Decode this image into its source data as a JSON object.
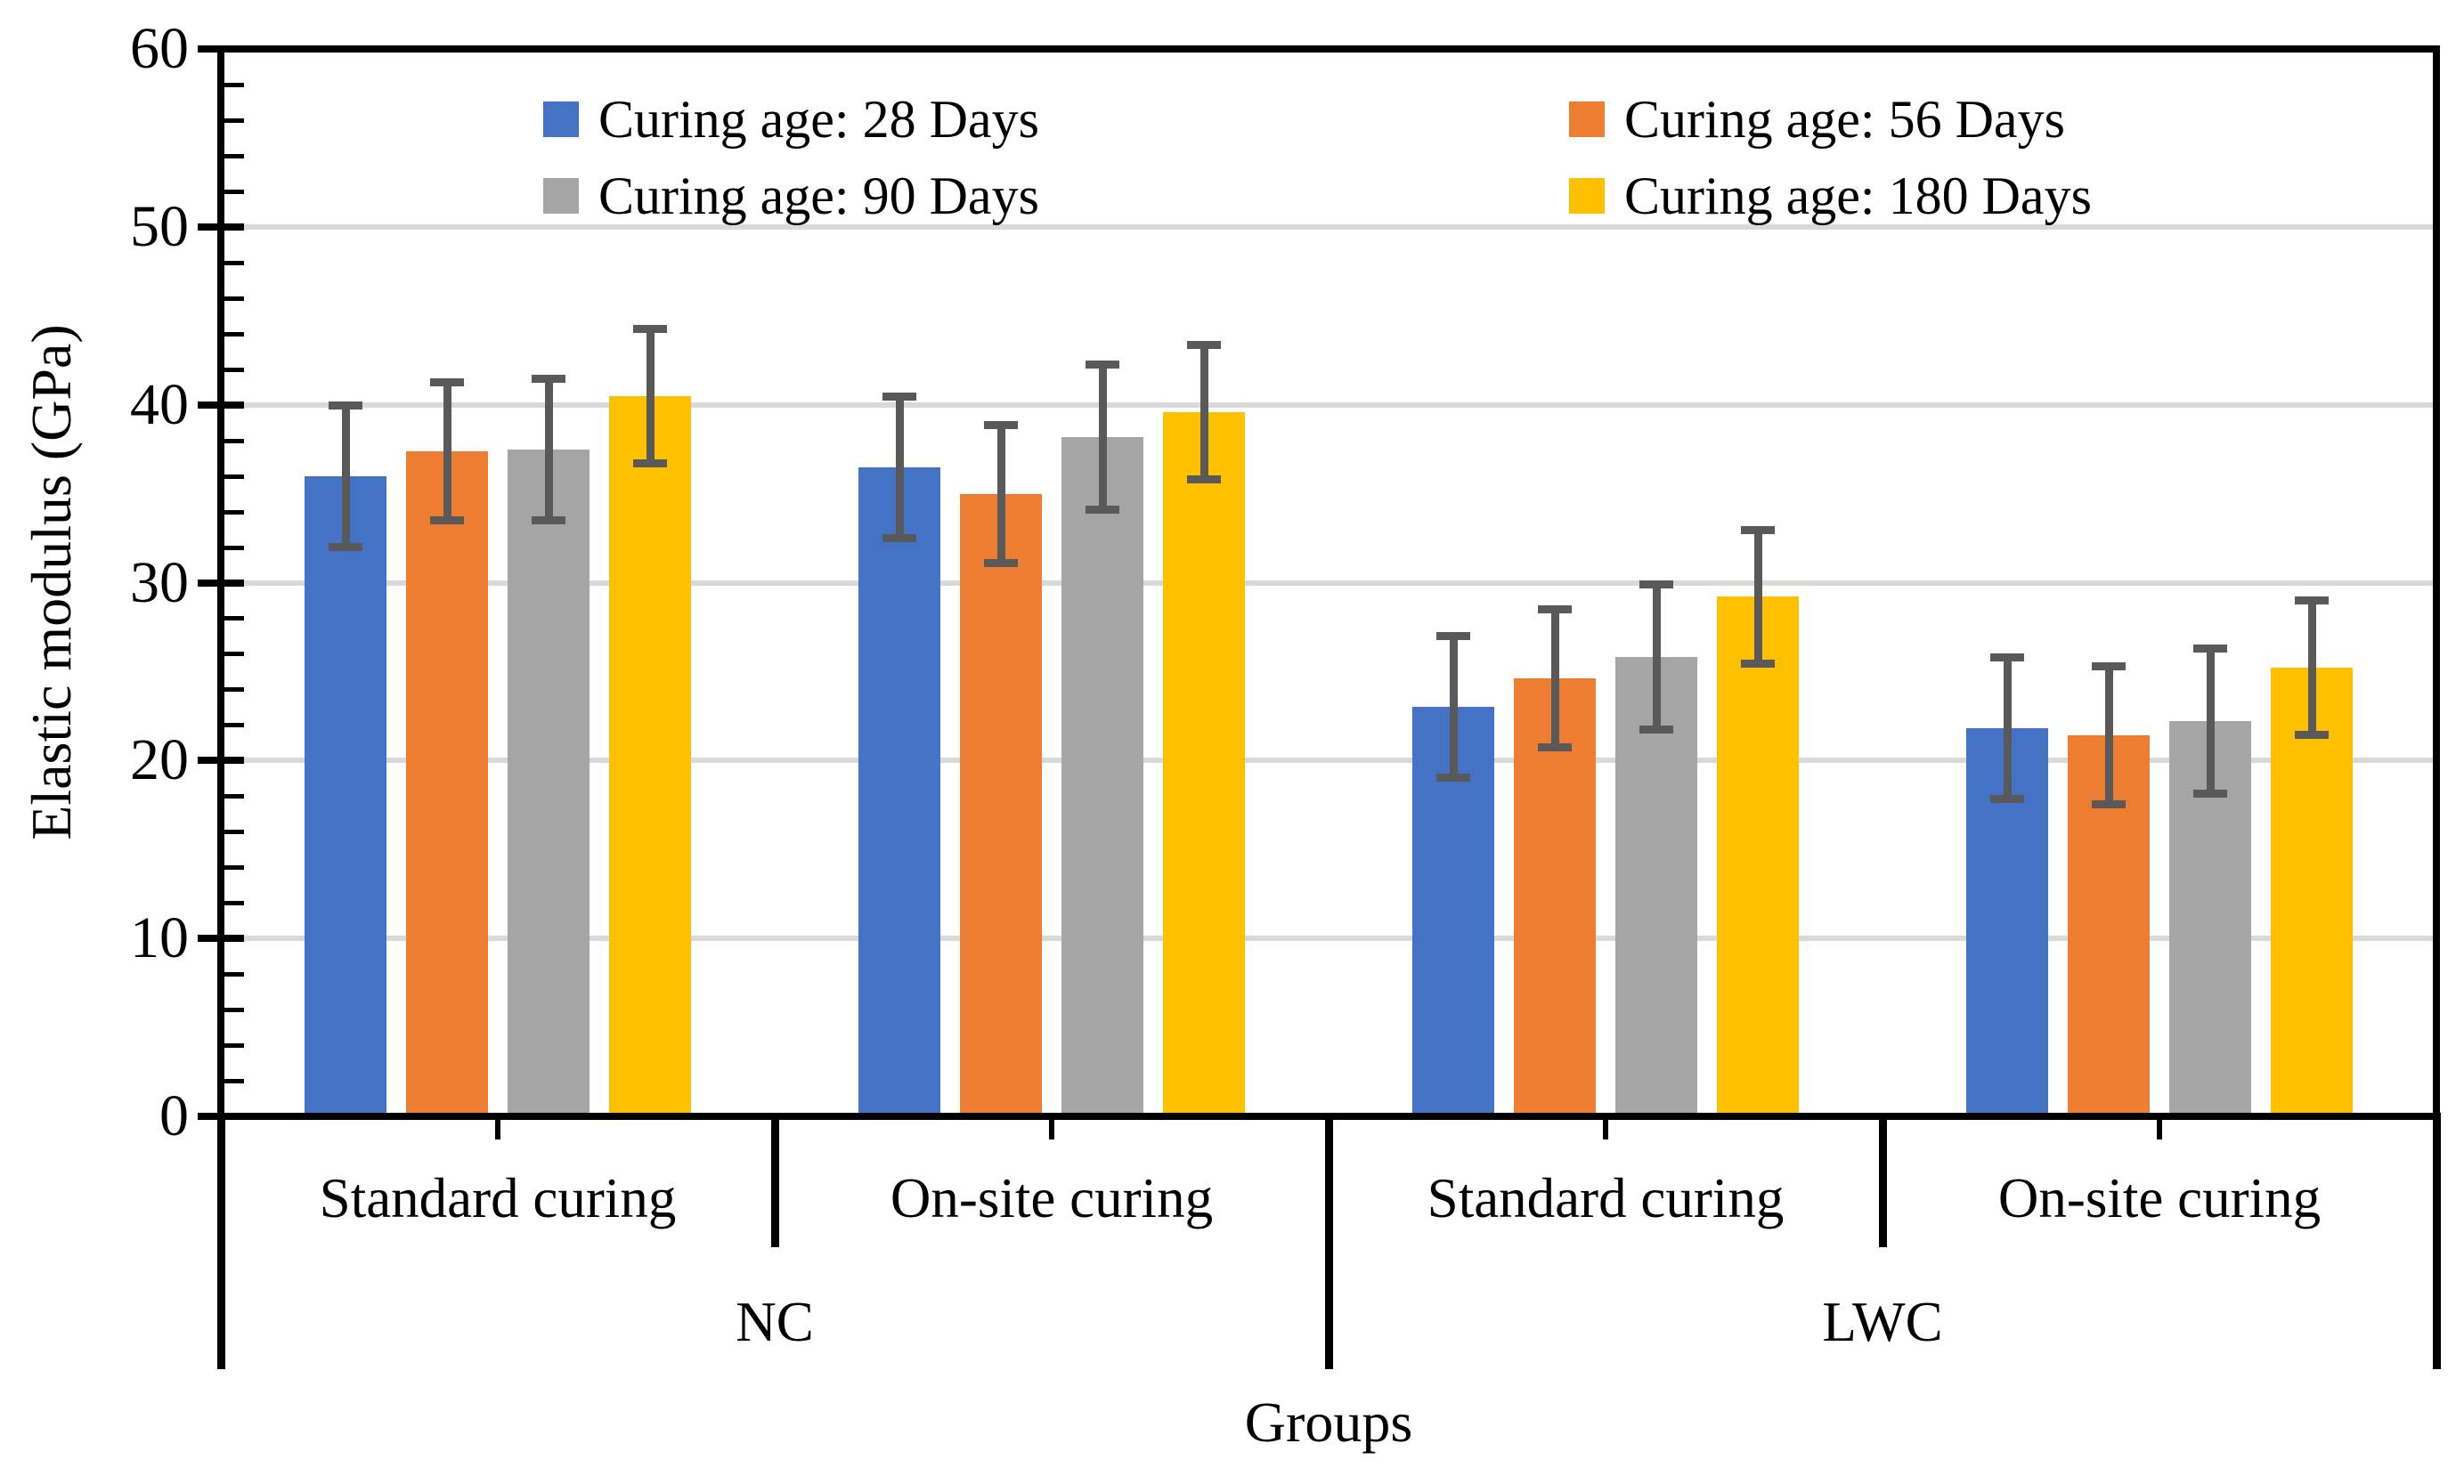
{
  "figure": {
    "description": "Grouped bar chart of elastic modulus by concrete group, curing condition and curing age, with error bars",
    "background_color": "#FFFFFF",
    "text_color": "#000000"
  },
  "chart_data": {
    "type": "bar",
    "title": "",
    "ylabel": "Elastic modulus (GPa)",
    "xlabel": "Groups",
    "ylim": [
      0,
      60
    ],
    "y_ticks": [
      0,
      10,
      20,
      30,
      40,
      50,
      60
    ],
    "y_minor_tick_step": 2,
    "grid": "horizontal-major",
    "gridline_color": "#D9D9D9",
    "axis_color": "#000000",
    "error_bar_color": "#595959",
    "categories": [
      {
        "id": "nc-standard",
        "label": "Standard curing",
        "group": "NC"
      },
      {
        "id": "nc-onsite",
        "label": "On-site curing",
        "group": "NC"
      },
      {
        "id": "lwc-standard",
        "label": "Standard curing",
        "group": "LWC"
      },
      {
        "id": "lwc-onsite",
        "label": "On-site curing",
        "group": "LWC"
      }
    ],
    "group_labels": [
      {
        "label": "NC",
        "from": 0,
        "to": 1
      },
      {
        "label": "LWC",
        "from": 2,
        "to": 3
      }
    ],
    "series": [
      {
        "id": "28d",
        "name": "Curing age: 28 Days",
        "color": "#4472C4",
        "values": [
          36.0,
          36.5,
          23.0,
          21.8
        ],
        "error_bars": [
          4.0,
          4.0,
          4.0,
          4.0
        ]
      },
      {
        "id": "56d",
        "name": "Curing age: 56 Days",
        "color": "#ED7D31",
        "values": [
          37.4,
          35.0,
          24.6,
          21.4
        ],
        "error_bars": [
          3.9,
          3.9,
          3.9,
          3.9
        ]
      },
      {
        "id": "90d",
        "name": "Curing age: 90 Days",
        "color": "#A5A5A5",
        "values": [
          37.5,
          38.2,
          25.8,
          22.2
        ],
        "error_bars": [
          4.0,
          4.1,
          4.1,
          4.1
        ]
      },
      {
        "id": "180d",
        "name": "Curing age: 180 Days",
        "color": "#FFC000",
        "values": [
          40.5,
          39.6,
          29.2,
          25.2
        ],
        "error_bars": [
          3.8,
          3.8,
          3.8,
          3.8
        ]
      }
    ],
    "legend": {
      "position": "top-inside",
      "columns": 2,
      "entries": [
        "Curing age: 28 Days",
        "Curing age: 56 Days",
        "Curing age: 90 Days",
        "Curing age: 180 Days"
      ]
    }
  }
}
